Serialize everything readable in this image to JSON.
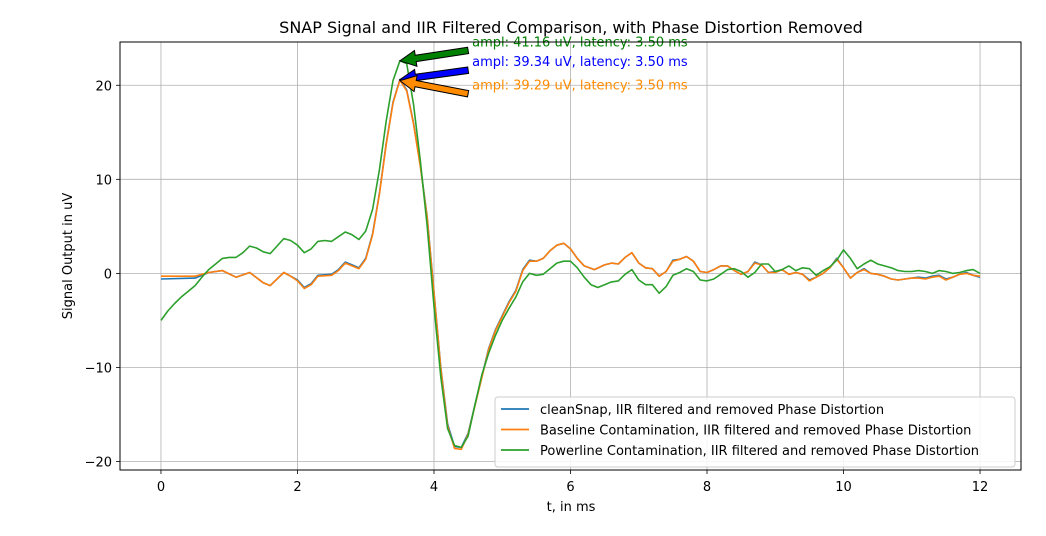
{
  "chart_data": {
    "type": "line",
    "title": "SNAP Signal and IIR Filtered Comparison, with Phase Distortion Removed",
    "xlabel": "t, in ms",
    "ylabel": "Signal Output in uV",
    "xlim": [
      -0.6,
      12.6
    ],
    "ylim": [
      -20.9,
      24.6
    ],
    "xticks": [
      0,
      2,
      4,
      6,
      8,
      10,
      12
    ],
    "yticks": [
      -20,
      -10,
      0,
      10,
      20
    ],
    "grid": true,
    "legend_position": "lower-right",
    "colors": {
      "cleanSnap": "#1f77b4",
      "baseline": "#ff7f0e",
      "powerline": "#2ca02c"
    },
    "series": [
      {
        "name": "cleanSnap, IIR filtered and removed Phase Distortion",
        "color": "#1f77b4",
        "x": [
          0,
          0.5,
          0.7,
          0.9,
          1.1,
          1.3,
          1.5,
          1.6,
          1.8,
          1.9,
          2.0,
          2.1,
          2.2,
          2.3,
          2.5,
          2.6,
          2.7,
          2.8,
          2.9,
          3.0,
          3.1,
          3.2,
          3.3,
          3.4,
          3.5,
          3.6,
          3.7,
          3.8,
          3.9,
          4.0,
          4.1,
          4.2,
          4.3,
          4.4,
          4.5,
          4.6,
          4.7,
          4.8,
          4.9,
          5.0,
          5.1,
          5.2,
          5.3,
          5.4,
          5.5,
          5.6,
          5.7,
          5.8,
          5.9,
          6.0,
          6.1,
          6.2,
          6.35,
          6.5,
          6.6,
          6.7,
          6.8,
          6.9,
          7.0,
          7.1,
          7.2,
          7.3,
          7.4,
          7.5,
          7.6,
          7.7,
          7.8,
          7.9,
          8.0,
          8.1,
          8.2,
          8.3,
          8.4,
          8.5,
          8.6,
          8.7,
          8.8,
          8.9,
          9.0,
          9.1,
          9.2,
          9.3,
          9.4,
          9.5,
          9.6,
          9.7,
          9.8,
          9.9,
          10.0,
          10.1,
          10.2,
          10.3,
          10.4,
          10.5,
          10.6,
          10.7,
          10.8,
          10.9,
          11.0,
          11.1,
          11.2,
          11.3,
          11.4,
          11.5,
          11.6,
          11.7,
          11.8,
          11.9,
          12.0
        ],
        "values": [
          -0.6,
          -0.5,
          0.1,
          0.3,
          -0.4,
          0.1,
          -1.0,
          -1.3,
          0.1,
          -0.3,
          -0.7,
          -1.5,
          -1.1,
          -0.2,
          -0.1,
          0.4,
          1.2,
          0.9,
          0.6,
          1.6,
          4.2,
          8.5,
          13.8,
          18.2,
          20.6,
          19.5,
          16.0,
          11.5,
          6.0,
          -2.0,
          -10.0,
          -16.0,
          -18.4,
          -18.5,
          -17.0,
          -14.0,
          -11.0,
          -8.0,
          -6.0,
          -4.5,
          -3.0,
          -1.8,
          0.4,
          1.4,
          1.3,
          1.6,
          2.4,
          3.0,
          3.2,
          2.6,
          1.6,
          0.8,
          0.4,
          0.9,
          1.1,
          1.0,
          1.7,
          2.2,
          1.1,
          0.6,
          0.5,
          -0.3,
          0.2,
          1.4,
          1.5,
          1.8,
          1.3,
          0.2,
          0.1,
          0.4,
          0.8,
          0.8,
          0.3,
          -0.1,
          0.2,
          1.2,
          0.9,
          0.1,
          0.2,
          0.4,
          -0.1,
          0.1,
          -0.1,
          -0.7,
          -0.4,
          0.0,
          0.6,
          1.6,
          0.6,
          -0.5,
          0.1,
          0.5,
          0.0,
          -0.1,
          -0.3,
          -0.6,
          -0.7,
          -0.6,
          -0.5,
          -0.4,
          -0.5,
          -0.3,
          -0.2,
          -0.6,
          -0.4,
          -0.1,
          0.1,
          -0.2,
          -0.4
        ]
      },
      {
        "name": "Baseline Contamination, IIR filtered and removed Phase Distortion",
        "color": "#ff7f0e",
        "x": [
          0,
          0.5,
          0.7,
          0.9,
          1.1,
          1.3,
          1.5,
          1.6,
          1.8,
          1.9,
          2.0,
          2.1,
          2.2,
          2.3,
          2.5,
          2.6,
          2.7,
          2.8,
          2.9,
          3.0,
          3.1,
          3.2,
          3.3,
          3.4,
          3.5,
          3.6,
          3.7,
          3.8,
          3.9,
          4.0,
          4.1,
          4.2,
          4.3,
          4.4,
          4.5,
          4.6,
          4.7,
          4.8,
          4.9,
          5.0,
          5.1,
          5.2,
          5.3,
          5.4,
          5.5,
          5.6,
          5.7,
          5.8,
          5.9,
          6.0,
          6.1,
          6.2,
          6.35,
          6.5,
          6.6,
          6.7,
          6.8,
          6.9,
          7.0,
          7.1,
          7.2,
          7.3,
          7.4,
          7.5,
          7.6,
          7.7,
          7.8,
          7.9,
          8.0,
          8.1,
          8.2,
          8.3,
          8.4,
          8.5,
          8.6,
          8.7,
          8.8,
          8.9,
          9.0,
          9.1,
          9.2,
          9.3,
          9.4,
          9.5,
          9.6,
          9.7,
          9.8,
          9.9,
          10.0,
          10.1,
          10.2,
          10.3,
          10.4,
          10.5,
          10.6,
          10.7,
          10.8,
          10.9,
          11.0,
          11.1,
          11.2,
          11.3,
          11.4,
          11.5,
          11.6,
          11.7,
          11.8,
          11.9,
          12.0
        ],
        "values": [
          -0.3,
          -0.3,
          0.1,
          0.3,
          -0.4,
          0.1,
          -1.0,
          -1.3,
          0.1,
          -0.3,
          -0.8,
          -1.6,
          -1.2,
          -0.3,
          -0.2,
          0.3,
          1.1,
          0.8,
          0.5,
          1.5,
          4.1,
          8.4,
          13.7,
          18.1,
          20.55,
          19.4,
          15.9,
          11.4,
          5.9,
          -2.1,
          -10.1,
          -16.2,
          -18.6,
          -18.7,
          -17.1,
          -14.1,
          -11.1,
          -8.1,
          -6.1,
          -4.6,
          -3.1,
          -1.9,
          0.3,
          1.3,
          1.3,
          1.6,
          2.4,
          3.0,
          3.2,
          2.6,
          1.6,
          0.8,
          0.4,
          0.9,
          1.1,
          1.0,
          1.7,
          2.2,
          1.1,
          0.6,
          0.5,
          -0.3,
          0.2,
          1.3,
          1.5,
          1.8,
          1.3,
          0.2,
          0.1,
          0.4,
          0.8,
          0.8,
          0.3,
          -0.1,
          0.2,
          1.1,
          0.9,
          0.1,
          0.1,
          0.4,
          -0.1,
          0.1,
          -0.1,
          -0.8,
          -0.4,
          0.0,
          0.6,
          1.5,
          0.6,
          -0.5,
          0.1,
          0.4,
          0.0,
          -0.1,
          -0.3,
          -0.6,
          -0.7,
          -0.6,
          -0.5,
          -0.5,
          -0.6,
          -0.4,
          -0.3,
          -0.7,
          -0.4,
          -0.1,
          0.0,
          -0.2,
          -0.3
        ]
      },
      {
        "name": "Powerline Contamination, IIR filtered and removed Phase Distortion",
        "color": "#2ca02c",
        "x": [
          0,
          0.1,
          0.2,
          0.3,
          0.4,
          0.5,
          0.6,
          0.7,
          0.8,
          0.9,
          1.0,
          1.1,
          1.2,
          1.3,
          1.4,
          1.5,
          1.6,
          1.7,
          1.8,
          1.9,
          2.0,
          2.1,
          2.2,
          2.3,
          2.4,
          2.5,
          2.6,
          2.7,
          2.8,
          2.9,
          3.0,
          3.1,
          3.2,
          3.3,
          3.4,
          3.5,
          3.6,
          3.7,
          3.8,
          3.9,
          4.0,
          4.1,
          4.2,
          4.3,
          4.4,
          4.5,
          4.6,
          4.7,
          4.8,
          4.9,
          5.0,
          5.1,
          5.2,
          5.3,
          5.4,
          5.5,
          5.6,
          5.7,
          5.8,
          5.9,
          6.0,
          6.1,
          6.2,
          6.3,
          6.4,
          6.5,
          6.6,
          6.7,
          6.8,
          6.9,
          7.0,
          7.1,
          7.2,
          7.3,
          7.4,
          7.5,
          7.6,
          7.7,
          7.8,
          7.9,
          8.0,
          8.1,
          8.2,
          8.3,
          8.4,
          8.5,
          8.6,
          8.7,
          8.8,
          8.9,
          9.0,
          9.1,
          9.2,
          9.3,
          9.4,
          9.5,
          9.6,
          9.7,
          9.8,
          9.9,
          10.0,
          10.1,
          10.2,
          10.3,
          10.4,
          10.5,
          10.6,
          10.7,
          10.8,
          10.9,
          11.0,
          11.1,
          11.2,
          11.3,
          11.4,
          11.5,
          11.6,
          11.7,
          11.8,
          11.9,
          12.0
        ],
        "values": [
          -5.0,
          -4.0,
          -3.2,
          -2.5,
          -1.9,
          -1.3,
          -0.4,
          0.4,
          1.0,
          1.6,
          1.7,
          1.7,
          2.2,
          2.9,
          2.7,
          2.3,
          2.1,
          2.9,
          3.7,
          3.5,
          3.0,
          2.2,
          2.6,
          3.4,
          3.5,
          3.4,
          3.9,
          4.4,
          4.1,
          3.6,
          4.5,
          6.8,
          11.0,
          16.2,
          20.5,
          22.6,
          22.3,
          18.0,
          12.0,
          5.0,
          -3.5,
          -11.0,
          -16.5,
          -18.3,
          -18.5,
          -17.3,
          -14.0,
          -10.8,
          -8.5,
          -6.6,
          -5.0,
          -3.7,
          -2.5,
          -0.9,
          0.0,
          -0.2,
          -0.1,
          0.5,
          1.1,
          1.3,
          1.3,
          0.6,
          -0.4,
          -1.2,
          -1.5,
          -1.2,
          -0.9,
          -0.8,
          -0.1,
          0.4,
          -0.7,
          -1.2,
          -1.2,
          -2.1,
          -1.4,
          -0.2,
          0.1,
          0.5,
          0.2,
          -0.7,
          -0.8,
          -0.6,
          -0.1,
          0.4,
          0.5,
          0.2,
          -0.4,
          0.1,
          1.0,
          1.0,
          0.2,
          0.4,
          0.8,
          0.3,
          0.6,
          0.5,
          -0.2,
          0.3,
          0.7,
          1.4,
          2.5,
          1.6,
          0.5,
          1.0,
          1.4,
          1.0,
          0.8,
          0.6,
          0.3,
          0.2,
          0.2,
          0.3,
          0.2,
          0.0,
          0.3,
          0.2,
          0.0,
          0.1,
          0.3,
          0.4,
          0.0
        ]
      }
    ],
    "annotations": [
      {
        "text": "ampl: 41.16 uV, latency: 3.50 ms",
        "color": "#008000",
        "text_x": 4.5,
        "text_y": 23.7,
        "tip_x": 3.5,
        "tip_y": 22.6,
        "arrow_color": "#008000"
      },
      {
        "text": "ampl: 39.34 uV, latency: 3.50 ms",
        "color": "#0000ff",
        "text_x": 4.5,
        "text_y": 21.6,
        "tip_x": 3.5,
        "tip_y": 20.6,
        "arrow_color": "#0000ff"
      },
      {
        "text": "ampl: 39.29 uV, latency: 3.50 ms",
        "color": "#ff8c00",
        "text_x": 4.5,
        "text_y": 19.1,
        "tip_x": 3.5,
        "tip_y": 20.5,
        "arrow_color": "#ff8c00"
      }
    ]
  }
}
